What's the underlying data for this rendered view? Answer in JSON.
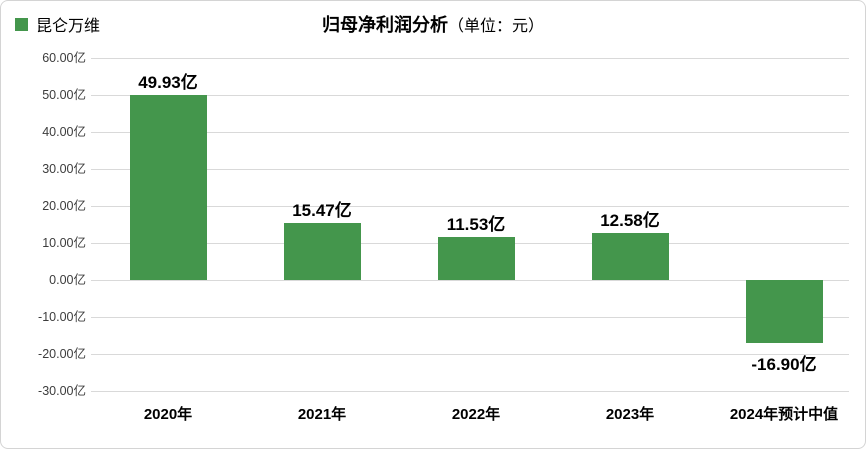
{
  "legend": {
    "label": "昆仑万维",
    "color": "#44964C"
  },
  "title": {
    "main": "归母净利润分析",
    "unit": "（单位：元）"
  },
  "chart_data": {
    "type": "bar",
    "title": "归母净利润分析（单位：元）",
    "legend_entries": [
      "昆仑万维"
    ],
    "legend_position": "top-left",
    "categories": [
      "2020年",
      "2021年",
      "2022年",
      "2023年",
      "2024年预计中值"
    ],
    "series": [
      {
        "name": "昆仑万维",
        "values": [
          49.93,
          15.47,
          11.53,
          12.58,
          -16.9
        ]
      }
    ],
    "bar_labels": [
      "49.93亿",
      "15.47亿",
      "11.53亿",
      "12.58亿",
      "-16.90亿"
    ],
    "xlabel": "",
    "ylabel": "",
    "ylim": [
      -30,
      60
    ],
    "ytick_step": 10,
    "ytick_labels": [
      "60.00亿",
      "50.00亿",
      "40.00亿",
      "30.00亿",
      "20.00亿",
      "10.00亿",
      "0.00亿",
      "-10.00亿",
      "-20.00亿",
      "-30.00亿"
    ],
    "grid": true,
    "bar_color": "#44964C",
    "gridline_color": "#d9d9d9"
  }
}
